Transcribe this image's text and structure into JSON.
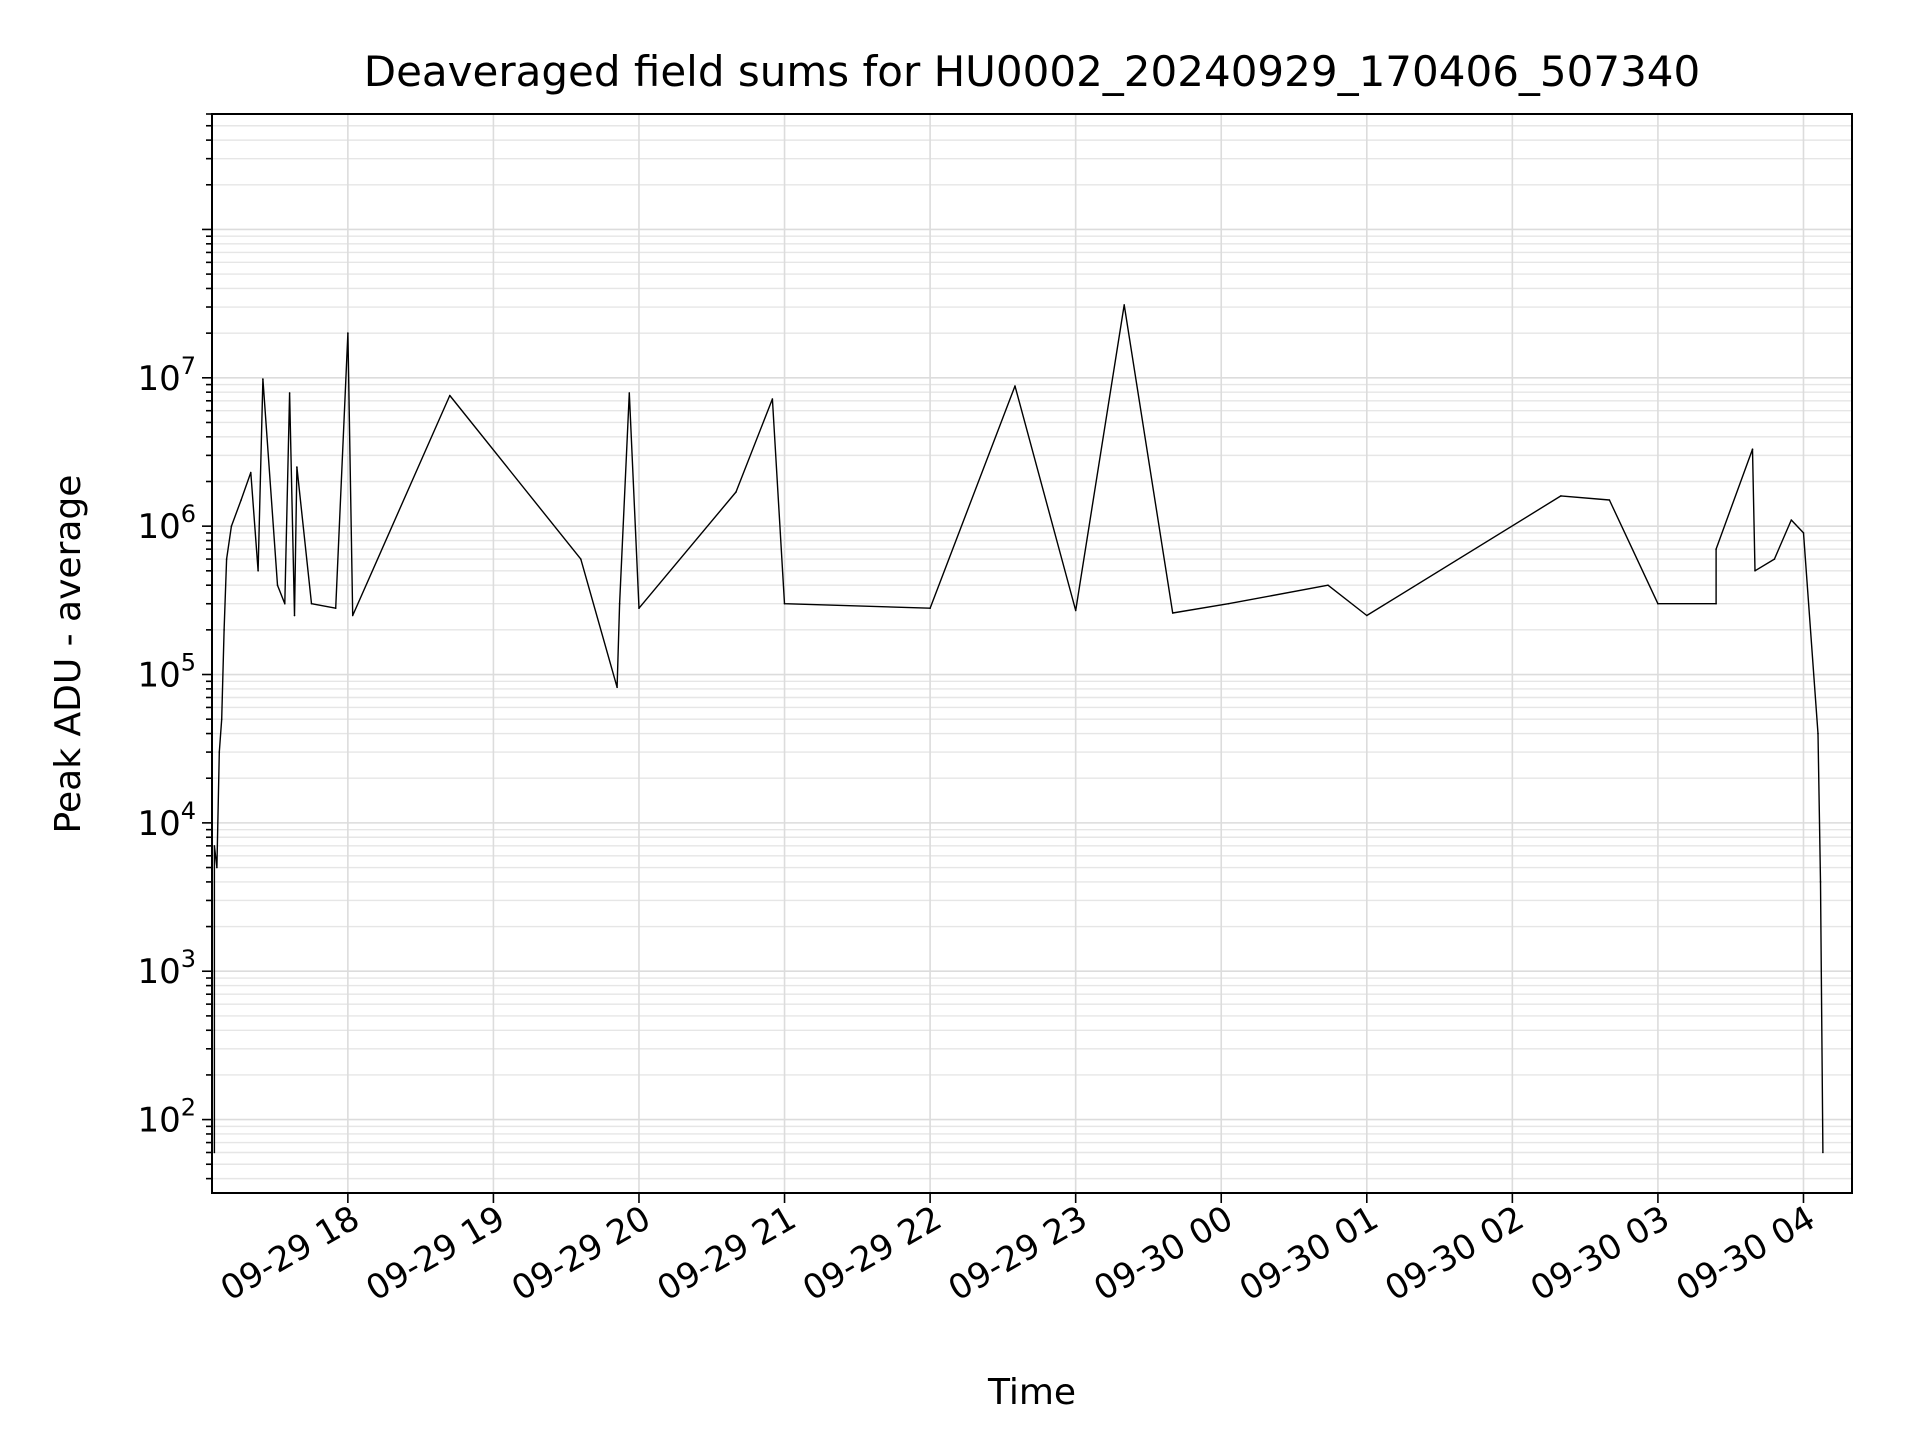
{
  "chart_data": {
    "type": "line",
    "title": "Deaveraged field sums for HU0002_20240929_170406_507340",
    "xlabel": "Time",
    "ylabel": "Peak ADU - average",
    "y_scale": "log",
    "ylim": [
      32,
      600000000
    ],
    "xlim": [
      "2024-09-29 17:04",
      "2024-09-30 04:20"
    ],
    "grid": true,
    "x_ticks": [
      {
        "x": "2024-09-29 18:00",
        "label": "09-29 18"
      },
      {
        "x": "2024-09-29 19:00",
        "label": "09-29 19"
      },
      {
        "x": "2024-09-29 20:00",
        "label": "09-29 20"
      },
      {
        "x": "2024-09-29 21:00",
        "label": "09-29 21"
      },
      {
        "x": "2024-09-29 22:00",
        "label": "09-29 22"
      },
      {
        "x": "2024-09-29 23:00",
        "label": "09-29 23"
      },
      {
        "x": "2024-09-30 00:00",
        "label": "09-30 00"
      },
      {
        "x": "2024-09-30 01:00",
        "label": "09-30 01"
      },
      {
        "x": "2024-09-30 02:00",
        "label": "09-30 02"
      },
      {
        "x": "2024-09-30 03:00",
        "label": "09-30 03"
      },
      {
        "x": "2024-09-30 04:00",
        "label": "09-30 04"
      }
    ],
    "y_ticks": [
      {
        "value": 100,
        "base": "10",
        "exp": "2"
      },
      {
        "value": 1000,
        "base": "10",
        "exp": "3"
      },
      {
        "value": 10000,
        "base": "10",
        "exp": "4"
      },
      {
        "value": 100000,
        "base": "10",
        "exp": "5"
      },
      {
        "value": 1000000,
        "base": "10",
        "exp": "6"
      },
      {
        "value": 10000000,
        "base": "10",
        "exp": "7"
      }
    ],
    "series": [
      {
        "color": "#000000",
        "points": [
          [
            "2024-09-29 17:05",
            60
          ],
          [
            "2024-09-29 17:05",
            7000
          ],
          [
            "2024-09-29 17:06",
            5000
          ],
          [
            "2024-09-29 17:07",
            30000
          ],
          [
            "2024-09-29 17:08",
            50000
          ],
          [
            "2024-09-29 17:09",
            200000
          ],
          [
            "2024-09-29 17:10",
            600000
          ],
          [
            "2024-09-29 17:12",
            1000000
          ],
          [
            "2024-09-29 17:16",
            1500000
          ],
          [
            "2024-09-29 17:20",
            2300000
          ],
          [
            "2024-09-29 17:23",
            500000
          ],
          [
            "2024-09-29 17:25",
            9800000
          ],
          [
            "2024-09-29 17:31",
            400000
          ],
          [
            "2024-09-29 17:34",
            300000
          ],
          [
            "2024-09-29 17:36",
            7900000
          ],
          [
            "2024-09-29 17:38",
            250000
          ],
          [
            "2024-09-29 17:39",
            2500000
          ],
          [
            "2024-09-29 17:45",
            300000
          ],
          [
            "2024-09-29 17:55",
            280000
          ],
          [
            "2024-09-29 18:00",
            20000000
          ],
          [
            "2024-09-29 18:02",
            250000
          ],
          [
            "2024-09-29 18:42",
            7600000
          ],
          [
            "2024-09-29 19:36",
            600000
          ],
          [
            "2024-09-29 19:51",
            82000
          ],
          [
            "2024-09-29 19:52",
            300000
          ],
          [
            "2024-09-29 19:56",
            7900000
          ],
          [
            "2024-09-29 20:00",
            280000
          ],
          [
            "2024-09-29 20:40",
            1700000
          ],
          [
            "2024-09-29 20:55",
            7200000
          ],
          [
            "2024-09-29 21:00",
            300000
          ],
          [
            "2024-09-29 22:00",
            280000
          ],
          [
            "2024-09-29 22:35",
            8800000
          ],
          [
            "2024-09-29 23:00",
            270000
          ],
          [
            "2024-09-29 23:20",
            31000000
          ],
          [
            "2024-09-29 23:40",
            260000
          ],
          [
            "2024-09-30 00:03",
            300000
          ],
          [
            "2024-09-30 00:44",
            400000
          ],
          [
            "2024-09-30 01:00",
            250000
          ],
          [
            "2024-09-30 02:20",
            1600000
          ],
          [
            "2024-09-30 02:40",
            1500000
          ],
          [
            "2024-09-30 03:00",
            300000
          ],
          [
            "2024-09-30 03:24",
            300000
          ],
          [
            "2024-09-30 03:24",
            700000
          ],
          [
            "2024-09-30 03:39",
            3300000
          ],
          [
            "2024-09-30 03:40",
            500000
          ],
          [
            "2024-09-30 03:48",
            600000
          ],
          [
            "2024-09-30 03:55",
            1100000
          ],
          [
            "2024-09-30 04:00",
            900000
          ],
          [
            "2024-09-30 04:06",
            40000
          ],
          [
            "2024-09-30 04:07",
            4000
          ],
          [
            "2024-09-30 04:08",
            60
          ]
        ]
      }
    ]
  }
}
